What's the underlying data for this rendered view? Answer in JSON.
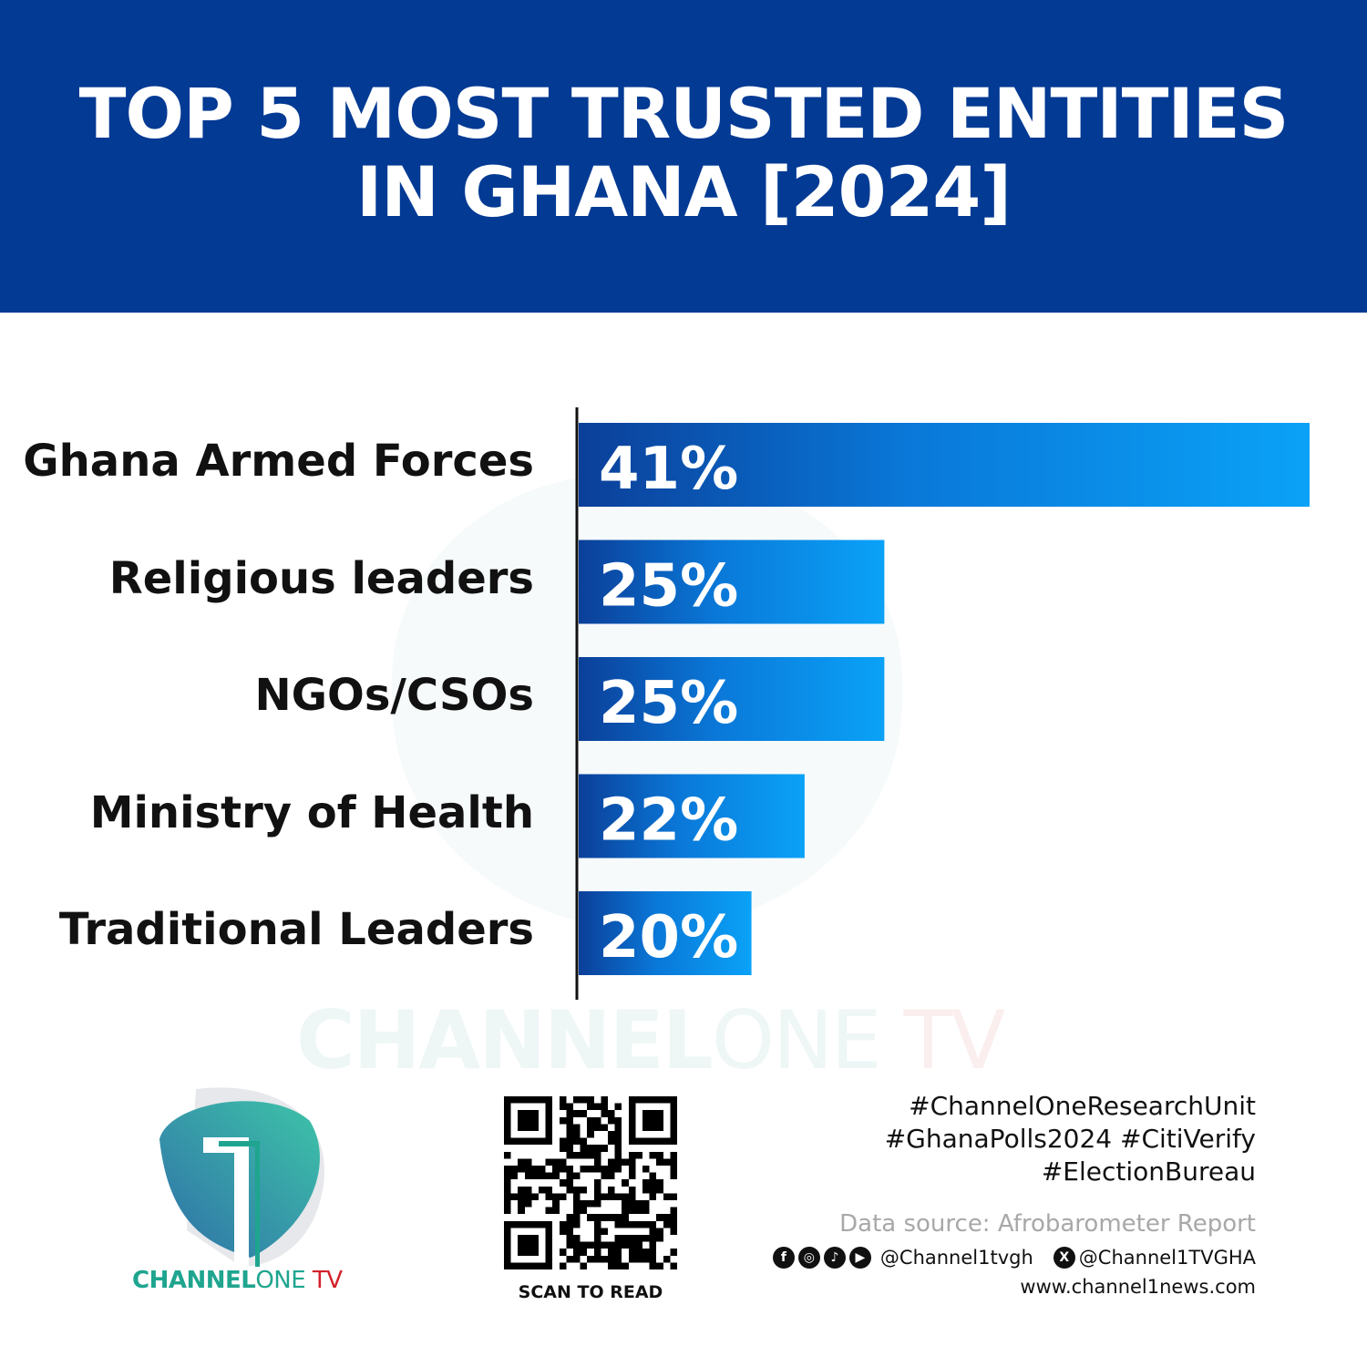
{
  "header": {
    "title_line1": "TOP 5 MOST TRUSTED ENTITIES",
    "title_line2": "IN GHANA [2024]",
    "bg_color": "#033a94"
  },
  "chart_data": {
    "type": "bar",
    "orientation": "horizontal",
    "title": "TOP 5 MOST TRUSTED ENTITIES IN GHANA [2024]",
    "categories": [
      "Ghana Armed Forces",
      "Religious leaders",
      "NGOs/CSOs",
      "Ministry of Health",
      "Traditional Leaders"
    ],
    "values": [
      41,
      25,
      25,
      22,
      20
    ],
    "data_labels": [
      "41%",
      "25%",
      "25%",
      "22%",
      "20%"
    ],
    "unit": "%",
    "xlim": [
      13.5,
      41
    ],
    "grid": false,
    "bar_gradient": [
      "#0b3f99",
      "#0aa2f7"
    ]
  },
  "watermark": {
    "bold": "CHANNEL",
    "light": "ONE ",
    "tv": "TV"
  },
  "logo": {
    "bold": "CHANNEL",
    "light": "ONE ",
    "tv": "TV"
  },
  "qr": {
    "caption": "SCAN TO READ"
  },
  "footer": {
    "hashtags": [
      "#ChannelOneResearchUnit",
      "#GhanaPolls2024 #CitiVerify",
      "#ElectionBureau"
    ],
    "source": "Data source: Afrobarometer Report",
    "social_icons": [
      "facebook-icon",
      "instagram-icon",
      "tiktok-icon",
      "youtube-icon"
    ],
    "handle1": "@Channel1tvgh",
    "x_icon": "x-icon",
    "handle2": "@Channel1TVGHA",
    "website": "www.channel1news.com"
  }
}
